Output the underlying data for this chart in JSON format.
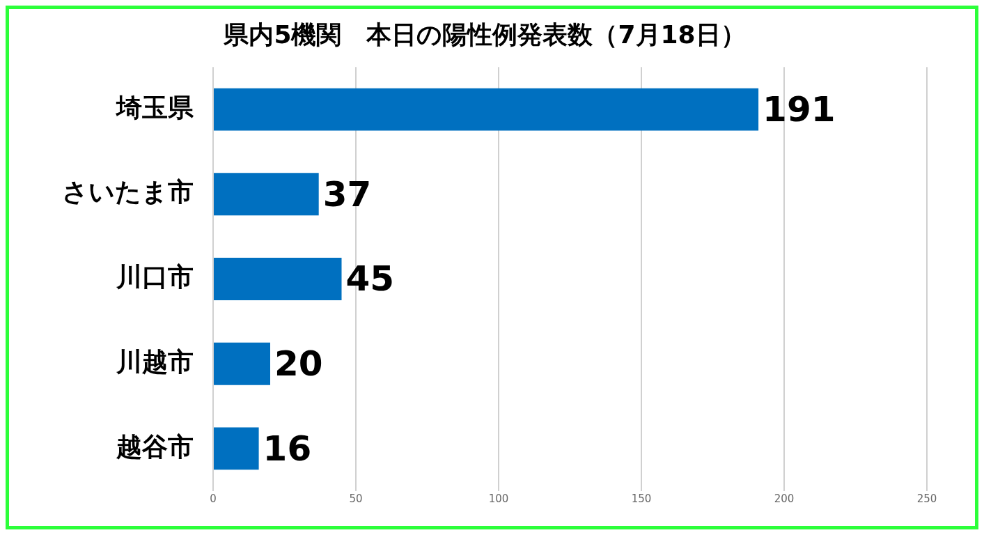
{
  "chart_data": {
    "type": "bar",
    "orientation": "horizontal",
    "title": "県内5機関　本日の陽性例発表数（7月18日）",
    "categories": [
      "埼玉県",
      "さいたま市",
      "川口市",
      "川越市",
      "越谷市"
    ],
    "values": [
      191,
      37,
      45,
      20,
      16
    ],
    "color": "#0070c0",
    "xlim": [
      0,
      250
    ],
    "xticks": [
      0,
      50,
      100,
      150,
      200,
      250
    ],
    "grid": "x",
    "data_labels": true
  }
}
